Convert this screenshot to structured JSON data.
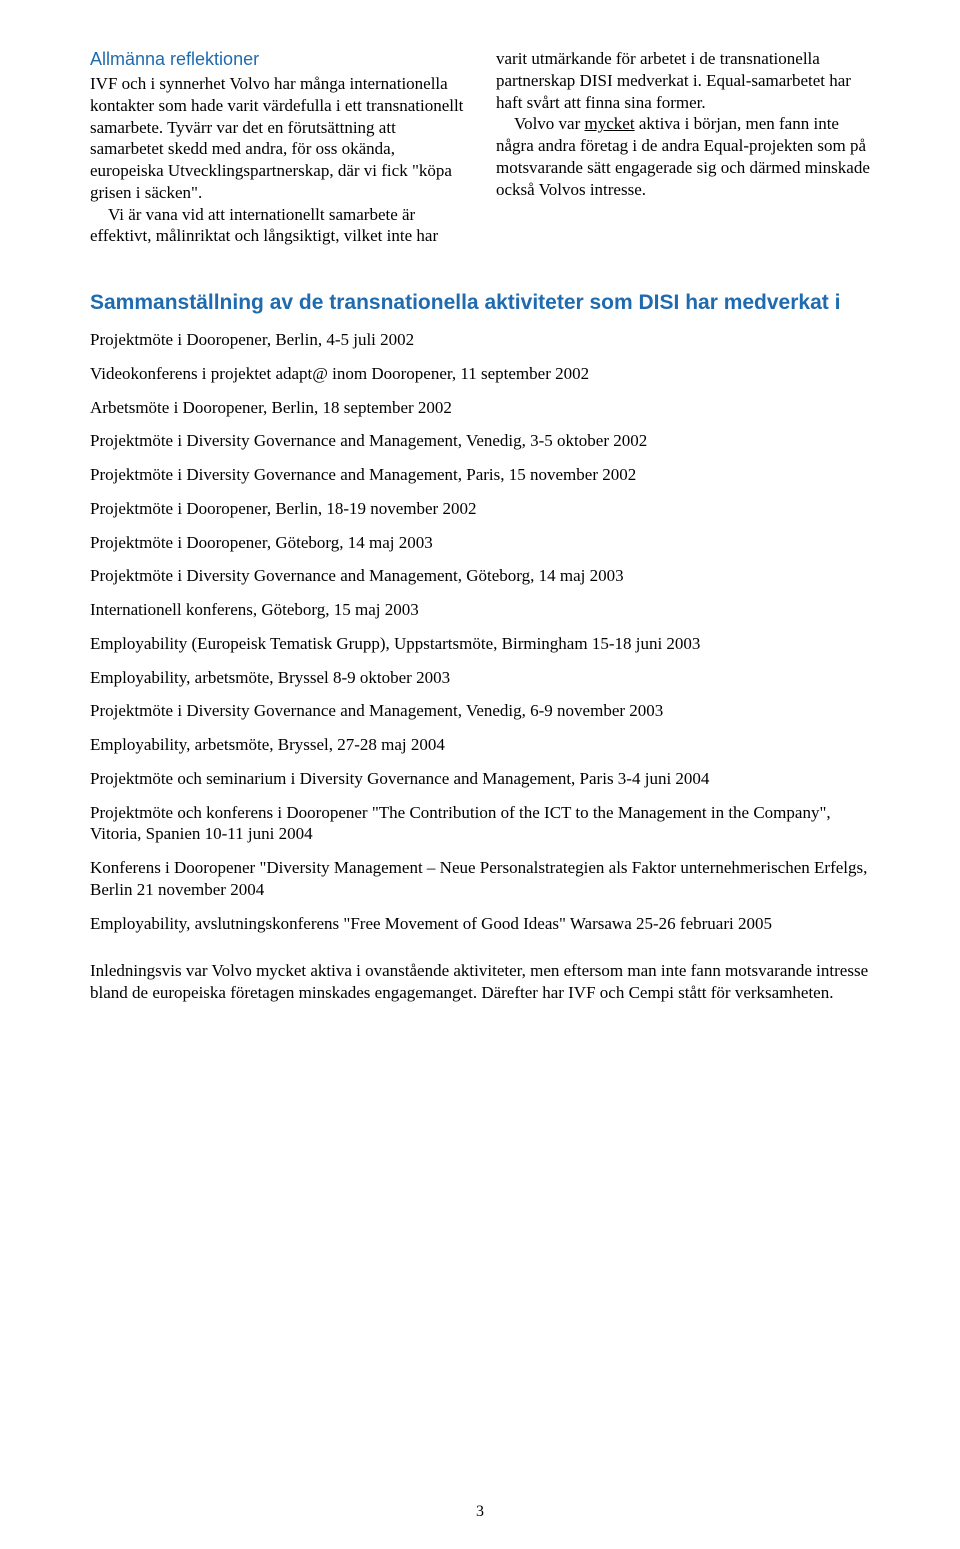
{
  "colors": {
    "heading_blue": "#1f6bb0",
    "text_black": "#000000",
    "background": "#ffffff"
  },
  "typography": {
    "body_font": "Adobe Garamond Pro",
    "heading_font": "Myriad Pro",
    "body_size_pt": 11,
    "heading_small_size_pt": 11,
    "heading_large_size_pt": 13
  },
  "left_col": {
    "heading": "Allmänna reflektioner",
    "p1": "IVF och i synnerhet Volvo har många internationella kontakter som hade varit värdefulla i ett transnationellt samarbete. Tyvärr var det en förutsättning att samarbetet skedd med andra, för oss okända, europeiska Utvecklingspartnerskap, där vi fick \"köpa grisen i säcken\".",
    "p2": "Vi är vana vid att internationellt samarbete är effektivt, målinriktat och långsiktigt, vilket inte har"
  },
  "right_col": {
    "p1": "varit utmärkande för arbetet i de transnationella partnerskap DISI medverkat i. Equal-samarbetet har haft svårt att finna sina former.",
    "p2a": "Volvo var ",
    "p2_under": "mycket",
    "p2b": " aktiva i början, men fann inte några andra företag i de andra Equal-projekten som på motsvarande sätt engagerade sig och därmed minskade också Volvos intresse."
  },
  "activities": {
    "heading": "Sammanställning av de transnationella aktiviteter som DISI har medverkat i",
    "items": [
      "Projektmöte i Dooropener, Berlin, 4-5 juli 2002",
      "Videokonferens i projektet adapt@ inom Dooropener, 11 september 2002",
      "Arbetsmöte i Dooropener, Berlin, 18 september 2002",
      "Projektmöte i Diversity Governance and Management, Venedig, 3-5 oktober 2002",
      "Projektmöte i Diversity Governance and Management, Paris, 15 november 2002",
      "Projektmöte i Dooropener, Berlin, 18-19 november 2002",
      "Projektmöte i Dooropener, Göteborg, 14 maj 2003",
      "Projektmöte i Diversity Governance and Management, Göteborg, 14 maj 2003",
      "Internationell konferens, Göteborg, 15 maj 2003",
      "Employability (Europeisk Tematisk Grupp), Uppstartsmöte, Birmingham 15-18 juni 2003",
      "Employability, arbetsmöte, Bryssel 8-9 oktober 2003",
      "Projektmöte i Diversity Governance and Management, Venedig, 6-9 november 2003",
      "Employability, arbetsmöte, Bryssel, 27-28 maj 2004",
      "Projektmöte och seminarium i Diversity Governance and Management, Paris 3-4 juni 2004",
      "Projektmöte och konferens i Dooropener \"The Contribution of the ICT to the Management in the Company\", Vitoria, Spanien 10-11 juni 2004",
      "Konferens i Dooropener \"Diversity Management – Neue Personalstrategien als Faktor unternehmerischen Erfelgs, Berlin 21 november 2004",
      "Employability, avslutningskonferens \"Free Movement of Good Ideas\" Warsawa 25-26 februari 2005"
    ]
  },
  "closing": "Inledningsvis var Volvo mycket aktiva i ovanstående aktiviteter, men eftersom man inte fann motsvarande intresse bland de europeiska företagen minskades engagemanget. Därefter har IVF och Cempi stått för verksamheten.",
  "page_number": "3"
}
